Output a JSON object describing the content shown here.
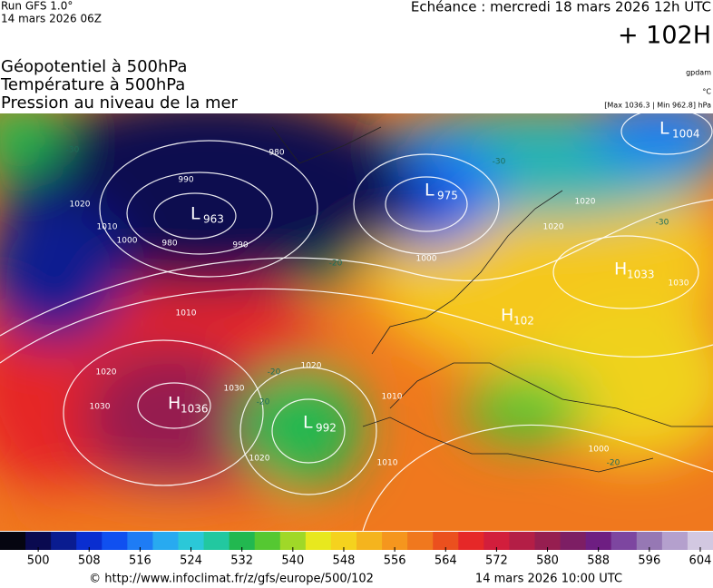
{
  "header": {
    "run": "Run GFS 1.0°",
    "run_date": "14 mars 2026 06Z",
    "forecast": "Echéance : mercredi 18 mars 2026 12h UTC",
    "lead": "+ 102H",
    "titles": [
      "Géopotentiel à 500hPa",
      "Température à 500hPa",
      "Pression au niveau de la mer"
    ],
    "unit_gpdam": "gpdam",
    "unit_temp": "°C",
    "extremes": "[Max 1036.3 | Min 962.8] hPa"
  },
  "map": {
    "pressure_centers": [
      {
        "letter": "L",
        "value": 963
      },
      {
        "letter": "L",
        "value": 975
      },
      {
        "letter": "L",
        "value": 1004
      },
      {
        "letter": "H",
        "value": 1033
      },
      {
        "letter": "H",
        "value": 1036
      },
      {
        "letter": "L",
        "value": 992
      },
      {
        "letter": "H",
        "value": 102
      }
    ],
    "isobar_labels": [
      1020,
      1010,
      1000,
      990,
      980,
      990,
      980,
      1000,
      1020,
      1010,
      1020,
      1030,
      1030,
      1020,
      1010,
      1020,
      1010,
      1000,
      1030,
      1020
    ],
    "temperature_labels": [
      -30,
      -30,
      -20,
      -20,
      -20,
      -20,
      -30
    ]
  },
  "colorbar": {
    "range": [
      494,
      606
    ],
    "ticks": [
      500,
      508,
      516,
      524,
      532,
      540,
      548,
      556,
      564,
      572,
      580,
      588,
      596,
      604
    ],
    "colors": [
      "#050510",
      "#0a0a50",
      "#0a1c90",
      "#0a2ed0",
      "#1050f0",
      "#1e7cf5",
      "#28aaf0",
      "#2bc8d8",
      "#22c8a0",
      "#22b850",
      "#55c832",
      "#a0d828",
      "#e8e81e",
      "#f5d21e",
      "#f5b41e",
      "#f5961e",
      "#f0781e",
      "#eb501e",
      "#e62828",
      "#d21e3c",
      "#b41e46",
      "#961e50",
      "#7d1e64",
      "#6e1e82",
      "#7d46a0",
      "#9678b4",
      "#b4a0cd",
      "#d2c8e1"
    ]
  },
  "footer": {
    "source": "© http://www.infoclimat.fr/z/gfs/europe/500/102",
    "generated": "14 mars 2026 10:00 UTC"
  }
}
